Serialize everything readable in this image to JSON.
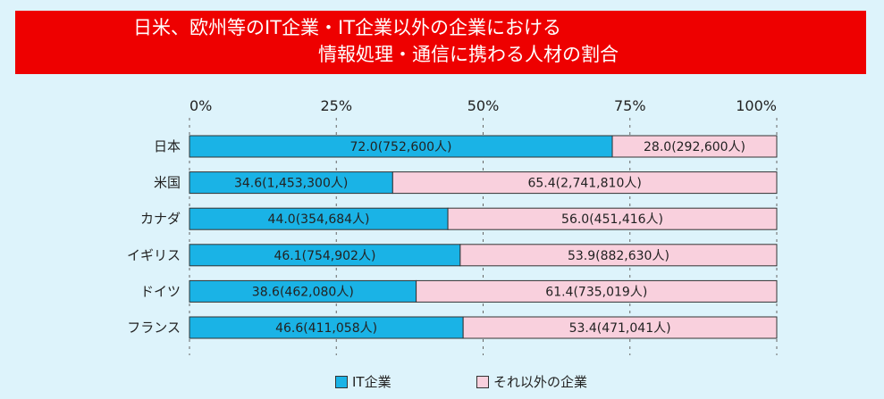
{
  "title": {
    "line1": "日米、欧州等のIT企業・IT企業以外の企業における",
    "line2": "情報処理・通信に携わる人材の割合"
  },
  "colors": {
    "banner": "#ee0000",
    "background": "#ddf3fb",
    "it": "#1ab3e6",
    "other": "#f9d0dd",
    "border": "#333333"
  },
  "legend": {
    "it_label": "IT企業",
    "other_label": "それ以外の企業"
  },
  "chart_data": {
    "type": "bar",
    "orientation": "horizontal-stacked-100",
    "title": "日米、欧州等のIT企業・IT企業以外の企業における情報処理・通信に携わる人材の割合",
    "xlim": [
      0,
      100
    ],
    "x_ticks": [
      "0%",
      "25%",
      "50%",
      "75%",
      "100%"
    ],
    "grid": true,
    "legend_position": "bottom",
    "categories": [
      "日本",
      "米国",
      "カナダ",
      "イギリス",
      "ドイツ",
      "フランス"
    ],
    "series": [
      {
        "name": "IT企業",
        "values": [
          72.0,
          34.6,
          44.0,
          46.1,
          38.6,
          46.6
        ],
        "labels": [
          "72.0(752,600人)",
          "34.6(1,453,300人)",
          "44.0(354,684人)",
          "46.1(754,902人)",
          "38.6(462,080人)",
          "46.6(411,058人)"
        ]
      },
      {
        "name": "それ以外の企業",
        "values": [
          28.0,
          65.4,
          56.0,
          53.9,
          61.4,
          53.4
        ],
        "labels": [
          "28.0(292,600人)",
          "65.4(2,741,810人)",
          "56.0(451,416人)",
          "53.9(882,630人)",
          "61.4(735,019人)",
          "53.4(471,041人)"
        ]
      }
    ]
  }
}
